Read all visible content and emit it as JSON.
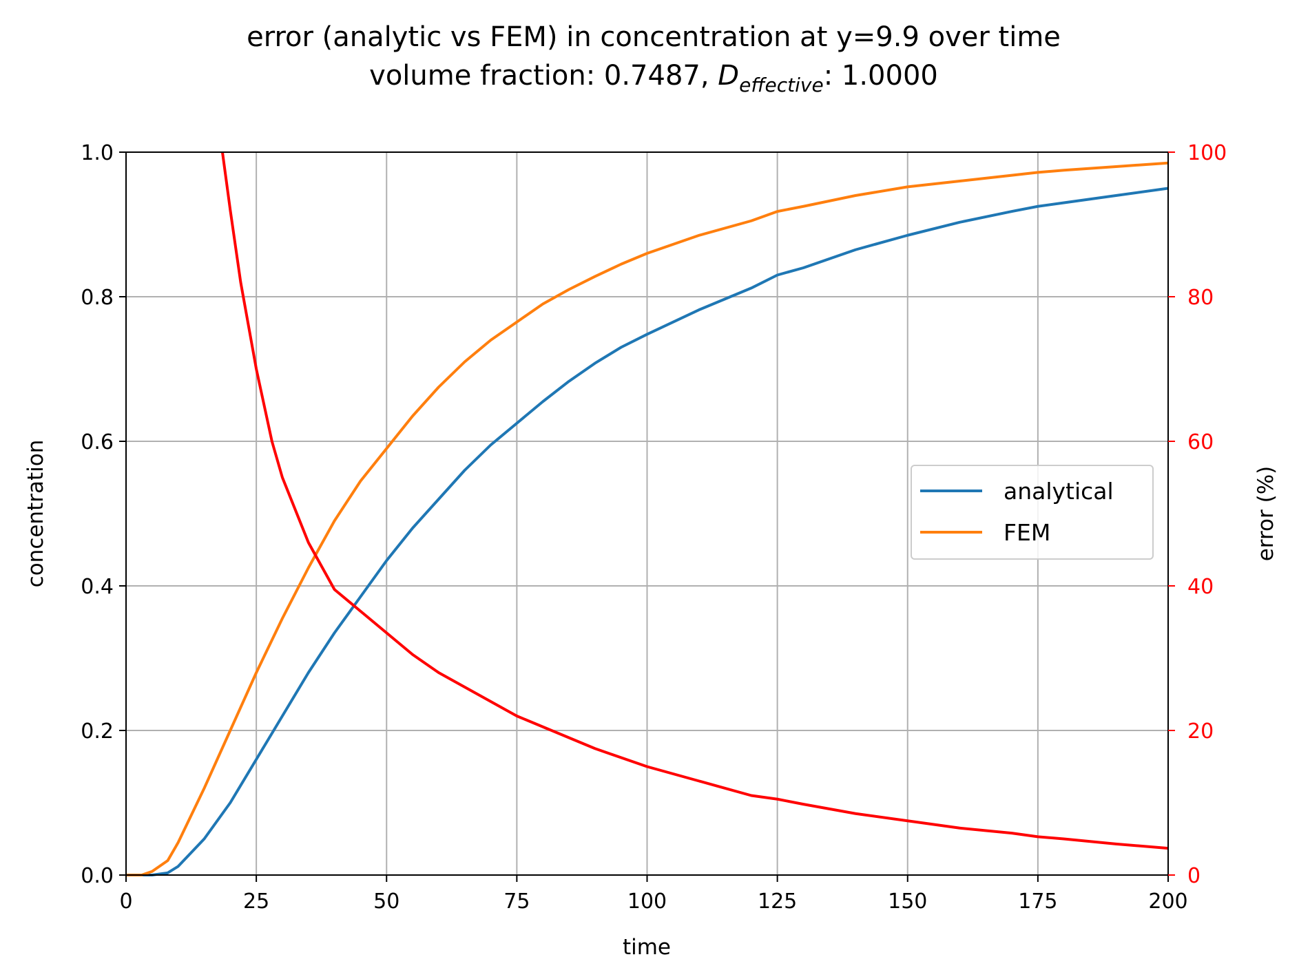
{
  "chart_data": {
    "type": "line",
    "title": {
      "line1": "error (analytic vs FEM) in concentration at y=9.9 over time",
      "line2_prefix": "volume fraction: 0.7487, ",
      "line2_symbol": "D",
      "line2_subscript": "effective",
      "line2_suffix": ": 1.0000"
    },
    "xlabel": "time",
    "ylabel": "concentration",
    "y2label": "error (%)",
    "xlim": [
      0,
      200
    ],
    "ylim": [
      0,
      1
    ],
    "y2lim": [
      0,
      100
    ],
    "xticks": [
      "0",
      "25",
      "50",
      "75",
      "100",
      "125",
      "150",
      "175",
      "200"
    ],
    "yticks": [
      "0.0",
      "0.2",
      "0.4",
      "0.6",
      "0.8",
      "1.0"
    ],
    "y2ticks": [
      "0",
      "20",
      "40",
      "60",
      "80",
      "100"
    ],
    "grid": true,
    "legend_position": "center-right",
    "colors": {
      "analytical": "#1f77b4",
      "fem": "#ff7f0e",
      "error": "#ff0000",
      "grid": "#b0b0b0"
    },
    "series": [
      {
        "name": "analytical",
        "axis": "left",
        "x": [
          0,
          5,
          8,
          10,
          15,
          20,
          25,
          30,
          35,
          40,
          45,
          50,
          55,
          60,
          65,
          70,
          75,
          80,
          85,
          90,
          95,
          100,
          110,
          120,
          125,
          130,
          140,
          150,
          160,
          170,
          175,
          180,
          190,
          200
        ],
        "y": [
          0,
          0.0,
          0.003,
          0.012,
          0.05,
          0.1,
          0.16,
          0.22,
          0.28,
          0.335,
          0.385,
          0.435,
          0.48,
          0.52,
          0.56,
          0.595,
          0.625,
          0.655,
          0.683,
          0.708,
          0.73,
          0.748,
          0.782,
          0.812,
          0.83,
          0.84,
          0.865,
          0.885,
          0.903,
          0.918,
          0.925,
          0.93,
          0.94,
          0.95
        ]
      },
      {
        "name": "FEM",
        "axis": "left",
        "x": [
          0,
          3,
          5,
          8,
          10,
          15,
          20,
          25,
          30,
          35,
          40,
          45,
          50,
          55,
          60,
          65,
          70,
          75,
          80,
          85,
          90,
          95,
          100,
          110,
          120,
          125,
          130,
          140,
          150,
          160,
          170,
          175,
          180,
          190,
          200
        ],
        "y": [
          0,
          0.0,
          0.005,
          0.02,
          0.045,
          0.12,
          0.2,
          0.28,
          0.355,
          0.425,
          0.49,
          0.545,
          0.59,
          0.635,
          0.675,
          0.71,
          0.74,
          0.765,
          0.79,
          0.81,
          0.828,
          0.845,
          0.86,
          0.885,
          0.905,
          0.918,
          0.925,
          0.94,
          0.952,
          0.96,
          0.968,
          0.972,
          0.975,
          0.98,
          0.985
        ]
      },
      {
        "name": "error",
        "axis": "right",
        "x": [
          18.5,
          20,
          22,
          25,
          28,
          30,
          35,
          40,
          45,
          50,
          55,
          60,
          65,
          70,
          75,
          80,
          90,
          100,
          110,
          120,
          125,
          130,
          140,
          150,
          160,
          170,
          175,
          180,
          190,
          200
        ],
        "y": [
          100,
          92,
          82,
          70,
          60,
          55,
          46,
          39.5,
          36.5,
          33.5,
          30.5,
          28,
          26,
          24,
          22,
          20.5,
          17.5,
          15,
          13,
          11,
          10.5,
          9.8,
          8.5,
          7.5,
          6.5,
          5.8,
          5.3,
          5,
          4.3,
          3.7
        ]
      }
    ]
  }
}
